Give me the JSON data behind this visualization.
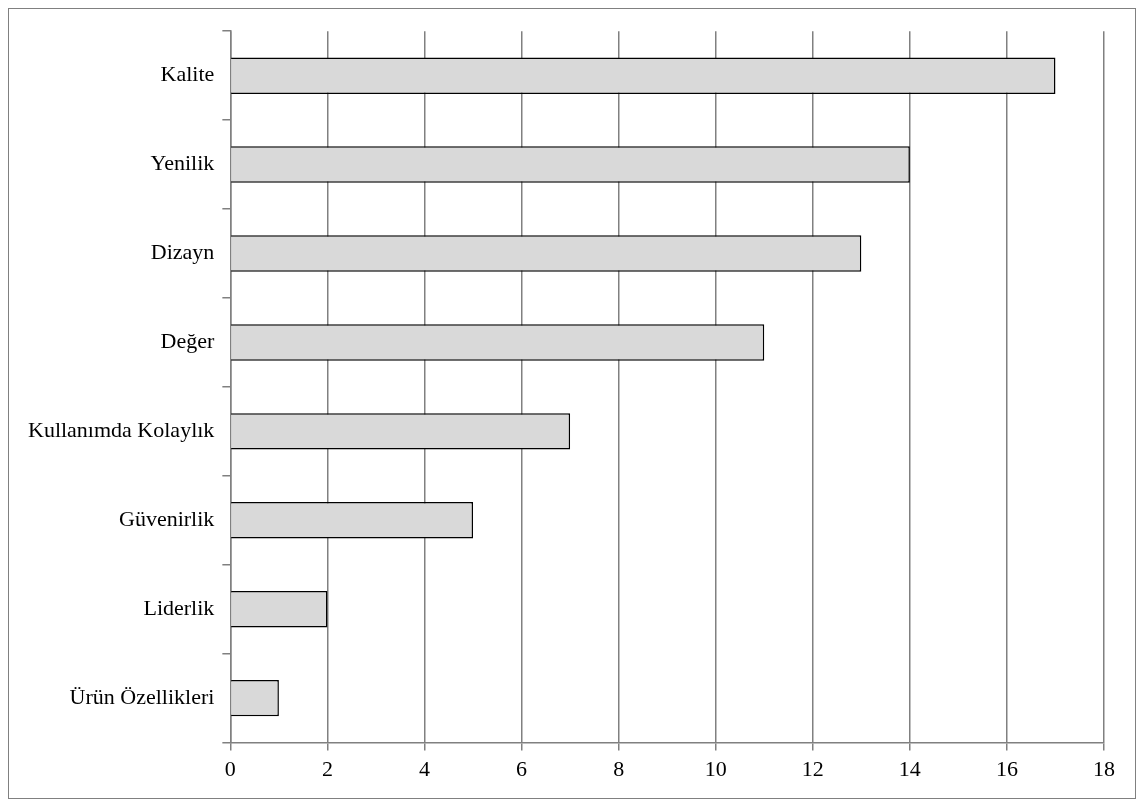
{
  "chart_data": {
    "type": "bar",
    "orientation": "horizontal",
    "categories": [
      "Kalite",
      "Yenilik",
      "Dizayn",
      "Değer",
      "Kullanımda Kolaylık",
      "Güvenirlik",
      "Liderlik",
      "Ürün Özellikleri"
    ],
    "values": [
      17,
      14,
      13,
      11,
      7,
      5,
      2,
      1
    ],
    "color": "#d9d9d9",
    "xlim": [
      0,
      18
    ],
    "xticks": [
      0,
      2,
      4,
      6,
      8,
      10,
      12,
      14,
      16,
      18
    ],
    "grid": "x",
    "legend": false
  }
}
